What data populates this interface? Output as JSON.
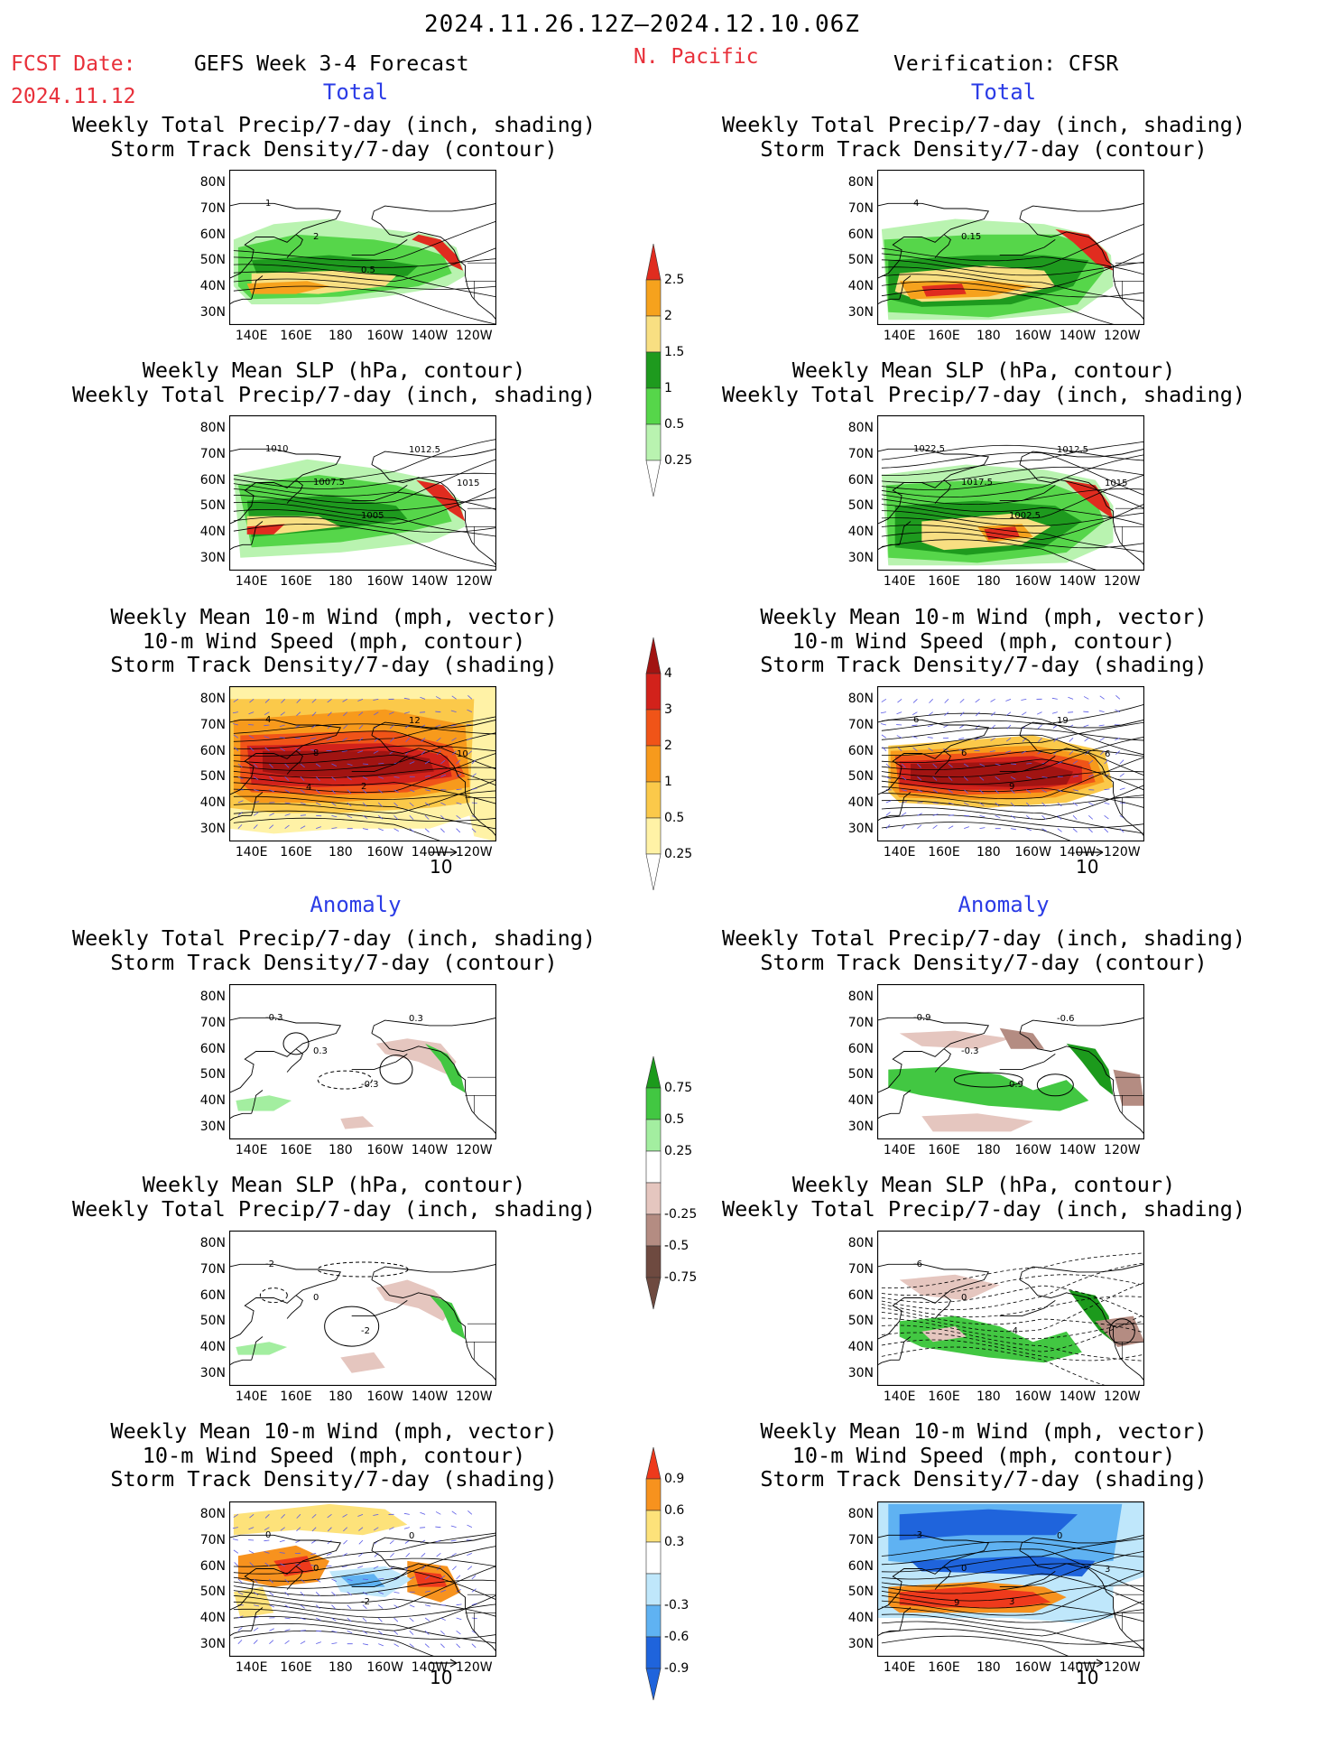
{
  "header": {
    "period": "2024.11.26.12Z–2024.12.10.06Z",
    "fcst_label": "FCST Date:",
    "fcst_date": "2024.11.12",
    "model": "GEFS Week 3-4 Forecast",
    "region": "N. Pacific",
    "verification": "Verification: CFSR"
  },
  "sections": {
    "total_label": "Total",
    "anomaly_label": "Anomaly"
  },
  "titles": {
    "precip_storm": [
      "Weekly Total Precip/7-day (inch, shading)",
      "Storm Track Density/7-day (contour)"
    ],
    "slp_precip": [
      "Weekly Mean SLP (hPa, contour)",
      "Weekly Total Precip/7-day (inch, shading)"
    ],
    "wind_storm": [
      "Weekly Mean 10-m Wind (mph, vector)",
      "10-m Wind Speed (mph, contour)",
      "Storm Track Density/7-day (shading)"
    ]
  },
  "axes": {
    "lat_ticks": [
      "80N",
      "70N",
      "60N",
      "50N",
      "40N",
      "30N"
    ],
    "lon_ticks": [
      "140E",
      "160E",
      "180",
      "160W",
      "140W",
      "120W"
    ]
  },
  "vector_ref": "10",
  "colorbars": {
    "precip_total": {
      "labels": [
        "2.5",
        "2",
        "1.5",
        "1",
        "0.5",
        "0.25"
      ],
      "colors": [
        "#e02c1f",
        "#f6a21d",
        "#f8df82",
        "#1e9a1e",
        "#56d64a",
        "#b9f3b0"
      ]
    },
    "storm_total": {
      "labels": [
        "4",
        "3",
        "2",
        "1",
        "0.5",
        "0.25"
      ],
      "colors": [
        "#a11412",
        "#d2221b",
        "#f05418",
        "#f79a1c",
        "#fbc94a",
        "#fff2a6"
      ]
    },
    "precip_anom": {
      "labels": [
        "0.75",
        "0.5",
        "0.25",
        "-0.25",
        "-0.5",
        "-0.75"
      ],
      "colors": [
        "#1c9a1c",
        "#42c742",
        "#a3eea0",
        "#ffffff",
        "#e5c6bf",
        "#b48c82",
        "#6e4a40"
      ]
    },
    "storm_anom": {
      "labels": [
        "0.9",
        "0.6",
        "0.3",
        "-0.3",
        "-0.6",
        "-0.9"
      ],
      "colors": [
        "#ee3a1c",
        "#f7921e",
        "#fde27a",
        "#ffffff",
        "#bfe7fb",
        "#5fb2f2",
        "#1f64dc"
      ]
    }
  },
  "panels": {
    "f1": {
      "labels": [
        "1",
        "2",
        "0.5"
      ]
    },
    "v1": {
      "labels": [
        "4",
        "0.15"
      ]
    },
    "f2": {
      "labels": [
        "1010",
        "1007.5",
        "1005",
        "1012.5",
        "1015"
      ]
    },
    "v2": {
      "labels": [
        "1022.5",
        "1017.5",
        "1002.5",
        "1012.5",
        "1015"
      ]
    },
    "f3": {
      "labels": [
        "4",
        "8",
        "2",
        "12",
        "10",
        "4"
      ]
    },
    "v3": {
      "labels": [
        "6",
        "6",
        "9",
        "19",
        "6"
      ]
    },
    "f4": {
      "labels": [
        "-0.3",
        "0.3",
        "-0.3",
        "0.3"
      ]
    },
    "v4": {
      "labels": [
        "-0.9",
        "-0.3",
        "0.9",
        "-0.6"
      ]
    },
    "f5": {
      "labels": [
        "-2",
        "0",
        "-2"
      ]
    },
    "v5": {
      "labels": [
        "-6",
        "0",
        "-4"
      ]
    },
    "f6": {
      "labels": [
        "0",
        "0",
        "-2",
        "0"
      ]
    },
    "v6": {
      "labels": [
        "-3",
        "0",
        "3",
        "0",
        "3",
        "9"
      ]
    }
  }
}
